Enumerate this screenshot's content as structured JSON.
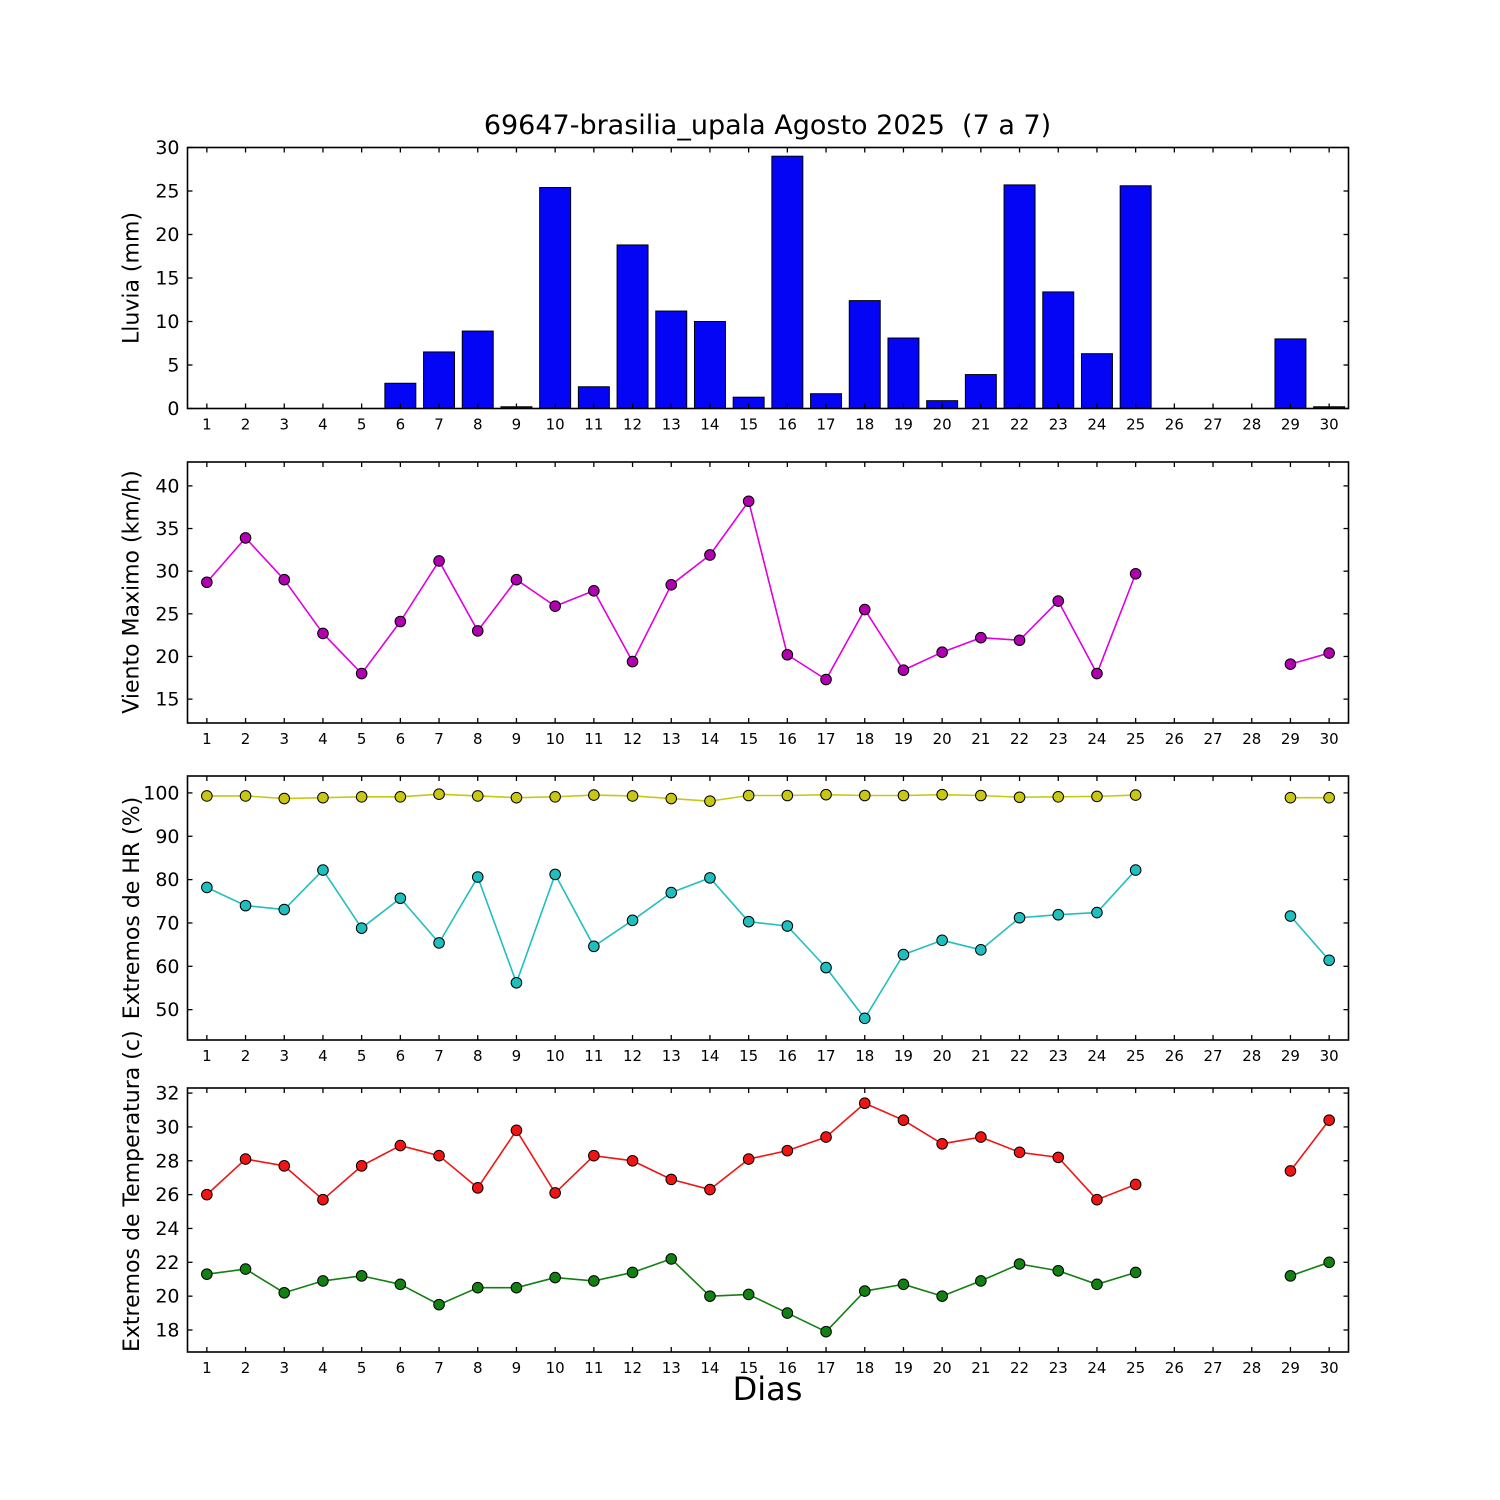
{
  "title": "69647-brasilia_upala Agosto 2025  (7 a 7)",
  "xlabel": "Dias",
  "chart_data": [
    {
      "type": "bar",
      "name": "lluvia",
      "ylabel": "Lluvia (mm)",
      "ylim": [
        0,
        30
      ],
      "yticks": [
        0,
        5,
        10,
        15,
        20,
        25,
        30
      ],
      "xlim": [
        0.5,
        30.5
      ],
      "xticks": [
        1,
        2,
        3,
        4,
        5,
        6,
        7,
        8,
        9,
        10,
        11,
        12,
        13,
        14,
        15,
        16,
        17,
        18,
        19,
        20,
        21,
        22,
        23,
        24,
        25,
        26,
        27,
        28,
        29,
        30
      ],
      "x": [
        1,
        2,
        3,
        4,
        5,
        6,
        7,
        8,
        9,
        10,
        11,
        12,
        13,
        14,
        15,
        16,
        17,
        18,
        19,
        20,
        21,
        22,
        23,
        24,
        25,
        26,
        27,
        28,
        29,
        30
      ],
      "bar_color": "#0505f5",
      "bar_edge": "#000000",
      "bar_width_units": 0.8,
      "values": [
        0,
        0,
        0,
        0,
        0,
        2.9,
        6.5,
        8.9,
        0.2,
        25.4,
        2.5,
        18.8,
        11.2,
        10.0,
        1.3,
        29.0,
        1.7,
        12.4,
        8.1,
        0.9,
        3.9,
        25.7,
        13.4,
        6.3,
        25.6,
        0,
        0,
        0,
        8.0,
        0.2
      ]
    },
    {
      "type": "line",
      "name": "viento",
      "ylabel": "Viento Maximo (km/h)",
      "ylim": [
        12.2,
        42.8
      ],
      "yticks": [
        15,
        20,
        25,
        30,
        35,
        40
      ],
      "xlim": [
        0.5,
        30.5
      ],
      "xticks": [
        1,
        2,
        3,
        4,
        5,
        6,
        7,
        8,
        9,
        10,
        11,
        12,
        13,
        14,
        15,
        16,
        17,
        18,
        19,
        20,
        21,
        22,
        23,
        24,
        25,
        26,
        27,
        28,
        29,
        30
      ],
      "x": [
        1,
        2,
        3,
        4,
        5,
        6,
        7,
        8,
        9,
        10,
        11,
        12,
        13,
        14,
        15,
        16,
        17,
        18,
        19,
        20,
        21,
        22,
        23,
        24,
        25,
        26,
        27,
        28,
        29,
        30
      ],
      "series": [
        {
          "name": "viento_maximo",
          "line_color": "#df00df",
          "marker_color": "#b000b0",
          "values": [
            28.7,
            33.9,
            29.0,
            22.7,
            18.0,
            24.1,
            31.2,
            23.0,
            29.0,
            25.9,
            27.7,
            19.4,
            28.4,
            31.9,
            38.2,
            20.2,
            17.3,
            25.5,
            18.4,
            20.5,
            22.2,
            21.9,
            26.5,
            18.0,
            29.7,
            null,
            null,
            null,
            19.1,
            20.4
          ]
        }
      ]
    },
    {
      "type": "line",
      "name": "hr",
      "ylabel": "Extremos de HR (%)",
      "ylim": [
        43.0,
        103.9
      ],
      "yticks": [
        50,
        60,
        70,
        80,
        90,
        100
      ],
      "xlim": [
        0.5,
        30.5
      ],
      "xticks": [
        1,
        2,
        3,
        4,
        5,
        6,
        7,
        8,
        9,
        10,
        11,
        12,
        13,
        14,
        15,
        16,
        17,
        18,
        19,
        20,
        21,
        22,
        23,
        24,
        25,
        26,
        27,
        28,
        29,
        30
      ],
      "x": [
        1,
        2,
        3,
        4,
        5,
        6,
        7,
        8,
        9,
        10,
        11,
        12,
        13,
        14,
        15,
        16,
        17,
        18,
        19,
        20,
        21,
        22,
        23,
        24,
        25,
        26,
        27,
        28,
        29,
        30
      ],
      "series": [
        {
          "name": "hr_maxima",
          "line_color": "#c8c814",
          "marker_color": "#c8c814",
          "values": [
            99.3,
            99.3,
            98.7,
            98.9,
            99.1,
            99.1,
            99.7,
            99.3,
            98.9,
            99.1,
            99.5,
            99.3,
            98.7,
            98.1,
            99.4,
            99.4,
            99.6,
            99.4,
            99.4,
            99.6,
            99.4,
            99.0,
            99.1,
            99.2,
            99.5,
            null,
            null,
            null,
            98.9,
            98.9
          ]
        },
        {
          "name": "hr_minima",
          "line_color": "#20bfbf",
          "marker_color": "#20bfbf",
          "values": [
            78.2,
            74.0,
            73.1,
            82.2,
            68.8,
            75.7,
            65.4,
            80.6,
            56.2,
            81.2,
            64.6,
            70.6,
            77.0,
            80.4,
            70.3,
            69.3,
            59.7,
            48.0,
            62.7,
            66.0,
            63.8,
            71.2,
            71.9,
            72.4,
            82.2,
            null,
            null,
            null,
            71.6,
            61.4
          ]
        }
      ]
    },
    {
      "type": "line",
      "name": "temperatura",
      "ylabel": "Extremos de Temperatura (c)",
      "ylim": [
        16.7,
        32.3
      ],
      "yticks": [
        18,
        20,
        22,
        24,
        26,
        28,
        30,
        32
      ],
      "xlim": [
        0.5,
        30.5
      ],
      "xticks": [
        1,
        2,
        3,
        4,
        5,
        6,
        7,
        8,
        9,
        10,
        11,
        12,
        13,
        14,
        15,
        16,
        17,
        18,
        19,
        20,
        21,
        22,
        23,
        24,
        25,
        26,
        27,
        28,
        29,
        30
      ],
      "x": [
        1,
        2,
        3,
        4,
        5,
        6,
        7,
        8,
        9,
        10,
        11,
        12,
        13,
        14,
        15,
        16,
        17,
        18,
        19,
        20,
        21,
        22,
        23,
        24,
        25,
        26,
        27,
        28,
        29,
        30
      ],
      "series": [
        {
          "name": "temperatura_maxima",
          "line_color": "#f01515",
          "marker_color": "#f01515",
          "values": [
            26.0,
            28.1,
            27.7,
            25.7,
            27.7,
            28.9,
            28.3,
            26.4,
            29.8,
            26.1,
            28.3,
            28.0,
            26.9,
            26.3,
            28.1,
            28.6,
            29.4,
            31.4,
            30.4,
            29.0,
            29.4,
            28.5,
            28.2,
            25.7,
            26.6,
            null,
            null,
            null,
            27.4,
            30.4
          ]
        },
        {
          "name": "temperatura_minima",
          "line_color": "#128012",
          "marker_color": "#128012",
          "values": [
            21.3,
            21.6,
            20.2,
            20.9,
            21.2,
            20.7,
            19.5,
            20.5,
            20.5,
            21.1,
            20.9,
            21.4,
            22.2,
            20.0,
            20.1,
            19.0,
            17.9,
            20.3,
            20.7,
            20.0,
            20.9,
            21.9,
            21.5,
            20.7,
            21.4,
            null,
            null,
            null,
            21.2,
            22.0
          ]
        }
      ]
    }
  ]
}
